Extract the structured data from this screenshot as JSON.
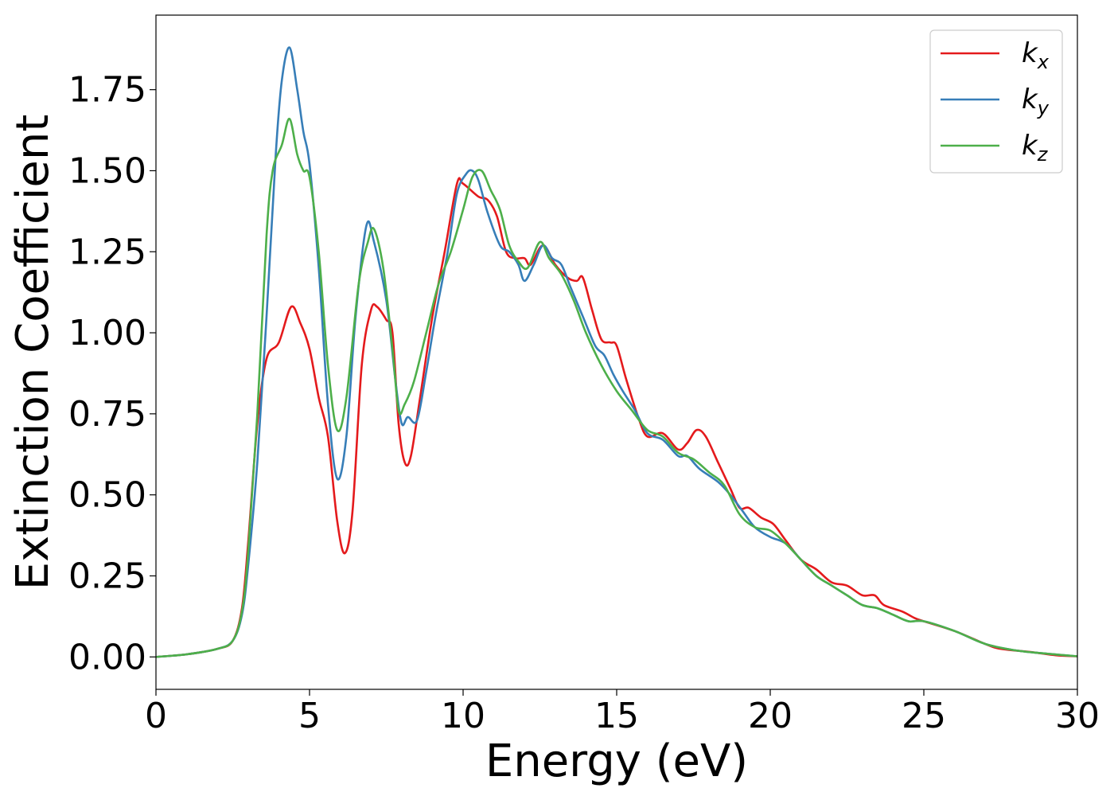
{
  "chart_data": {
    "type": "line",
    "title": "",
    "xlabel": "Energy (eV)",
    "ylabel": "Extinction Coefficient",
    "xlim": [
      0,
      30
    ],
    "ylim": [
      -0.1,
      1.98
    ],
    "xticks": [
      0,
      5,
      10,
      15,
      20,
      25,
      30
    ],
    "xtick_labels": [
      "0",
      "5",
      "10",
      "15",
      "20",
      "25",
      "30"
    ],
    "yticks": [
      0.0,
      0.25,
      0.5,
      0.75,
      1.0,
      1.25,
      1.5,
      1.75
    ],
    "ytick_labels": [
      "0.00",
      "0.25",
      "0.50",
      "0.75",
      "1.00",
      "1.25",
      "1.50",
      "1.75"
    ],
    "grid": false,
    "legend": "top-right",
    "series": [
      {
        "name": "k_x",
        "label_base": "k",
        "label_sub": "x",
        "color": "#e41a1c",
        "points": [
          [
            0,
            0
          ],
          [
            1,
            0.008
          ],
          [
            2,
            0.025
          ],
          [
            2.5,
            0.05
          ],
          [
            2.8,
            0.15
          ],
          [
            3.0,
            0.35
          ],
          [
            3.3,
            0.72
          ],
          [
            3.6,
            0.92
          ],
          [
            4.0,
            0.97
          ],
          [
            4.4,
            1.08
          ],
          [
            4.7,
            1.03
          ],
          [
            5.0,
            0.95
          ],
          [
            5.3,
            0.8
          ],
          [
            5.6,
            0.68
          ],
          [
            5.9,
            0.42
          ],
          [
            6.15,
            0.32
          ],
          [
            6.4,
            0.45
          ],
          [
            6.7,
            0.9
          ],
          [
            7.0,
            1.07
          ],
          [
            7.2,
            1.08
          ],
          [
            7.5,
            1.04
          ],
          [
            7.7,
            1.0
          ],
          [
            7.9,
            0.72
          ],
          [
            8.1,
            0.6
          ],
          [
            8.3,
            0.62
          ],
          [
            8.6,
            0.8
          ],
          [
            9.0,
            1.05
          ],
          [
            9.4,
            1.25
          ],
          [
            9.8,
            1.46
          ],
          [
            10.0,
            1.46
          ],
          [
            10.5,
            1.42
          ],
          [
            10.8,
            1.41
          ],
          [
            11.1,
            1.36
          ],
          [
            11.4,
            1.25
          ],
          [
            11.7,
            1.23
          ],
          [
            12.0,
            1.23
          ],
          [
            12.2,
            1.21
          ],
          [
            12.6,
            1.27
          ],
          [
            13.0,
            1.21
          ],
          [
            13.4,
            1.17
          ],
          [
            13.7,
            1.16
          ],
          [
            13.9,
            1.17
          ],
          [
            14.2,
            1.07
          ],
          [
            14.5,
            0.98
          ],
          [
            14.8,
            0.97
          ],
          [
            15.0,
            0.96
          ],
          [
            15.3,
            0.86
          ],
          [
            15.7,
            0.74
          ],
          [
            16.0,
            0.68
          ],
          [
            16.5,
            0.69
          ],
          [
            17.0,
            0.64
          ],
          [
            17.3,
            0.66
          ],
          [
            17.6,
            0.7
          ],
          [
            17.9,
            0.68
          ],
          [
            18.3,
            0.6
          ],
          [
            18.7,
            0.52
          ],
          [
            19.0,
            0.46
          ],
          [
            19.3,
            0.46
          ],
          [
            19.7,
            0.43
          ],
          [
            20.1,
            0.41
          ],
          [
            20.5,
            0.36
          ],
          [
            21.0,
            0.3
          ],
          [
            21.5,
            0.27
          ],
          [
            22.0,
            0.23
          ],
          [
            22.5,
            0.22
          ],
          [
            23.0,
            0.19
          ],
          [
            23.4,
            0.19
          ],
          [
            23.7,
            0.16
          ],
          [
            24.3,
            0.14
          ],
          [
            24.7,
            0.12
          ],
          [
            25.0,
            0.11
          ],
          [
            26.0,
            0.08
          ],
          [
            27.0,
            0.04
          ],
          [
            27.5,
            0.025
          ],
          [
            28.5,
            0.015
          ],
          [
            29.3,
            0.005
          ],
          [
            30,
            0.002
          ]
        ]
      },
      {
        "name": "k_y",
        "label_base": "k",
        "label_sub": "y",
        "color": "#377eb8",
        "points": [
          [
            0,
            0
          ],
          [
            1,
            0.008
          ],
          [
            2,
            0.025
          ],
          [
            2.5,
            0.05
          ],
          [
            2.8,
            0.13
          ],
          [
            3.0,
            0.28
          ],
          [
            3.3,
            0.6
          ],
          [
            3.6,
            1.05
          ],
          [
            3.9,
            1.55
          ],
          [
            4.1,
            1.78
          ],
          [
            4.35,
            1.88
          ],
          [
            4.6,
            1.75
          ],
          [
            4.8,
            1.62
          ],
          [
            5.0,
            1.52
          ],
          [
            5.3,
            1.2
          ],
          [
            5.6,
            0.78
          ],
          [
            5.9,
            0.55
          ],
          [
            6.2,
            0.68
          ],
          [
            6.5,
            1.05
          ],
          [
            6.85,
            1.33
          ],
          [
            7.1,
            1.28
          ],
          [
            7.5,
            1.1
          ],
          [
            7.8,
            0.85
          ],
          [
            8.0,
            0.72
          ],
          [
            8.2,
            0.74
          ],
          [
            8.5,
            0.73
          ],
          [
            8.8,
            0.88
          ],
          [
            9.1,
            1.05
          ],
          [
            9.5,
            1.25
          ],
          [
            9.8,
            1.43
          ],
          [
            10.1,
            1.49
          ],
          [
            10.3,
            1.5
          ],
          [
            10.5,
            1.47
          ],
          [
            10.8,
            1.37
          ],
          [
            11.2,
            1.27
          ],
          [
            11.5,
            1.25
          ],
          [
            11.8,
            1.21
          ],
          [
            12.0,
            1.16
          ],
          [
            12.3,
            1.21
          ],
          [
            12.6,
            1.27
          ],
          [
            12.9,
            1.23
          ],
          [
            13.2,
            1.21
          ],
          [
            13.5,
            1.14
          ],
          [
            13.9,
            1.05
          ],
          [
            14.3,
            0.96
          ],
          [
            14.6,
            0.93
          ],
          [
            14.9,
            0.87
          ],
          [
            15.2,
            0.82
          ],
          [
            15.6,
            0.76
          ],
          [
            16.0,
            0.69
          ],
          [
            16.5,
            0.67
          ],
          [
            17.0,
            0.62
          ],
          [
            17.3,
            0.62
          ],
          [
            17.7,
            0.58
          ],
          [
            18.3,
            0.54
          ],
          [
            18.7,
            0.5
          ],
          [
            19.1,
            0.45
          ],
          [
            19.5,
            0.4
          ],
          [
            20.0,
            0.37
          ],
          [
            20.5,
            0.35
          ],
          [
            21.0,
            0.3
          ],
          [
            21.5,
            0.25
          ],
          [
            22.0,
            0.22
          ],
          [
            22.5,
            0.19
          ],
          [
            23.0,
            0.16
          ],
          [
            23.5,
            0.15
          ],
          [
            24.0,
            0.13
          ],
          [
            24.5,
            0.11
          ],
          [
            25.0,
            0.11
          ],
          [
            26.0,
            0.08
          ],
          [
            27.0,
            0.04
          ],
          [
            28.0,
            0.02
          ],
          [
            29.0,
            0.01
          ],
          [
            30,
            0.002
          ]
        ]
      },
      {
        "name": "k_z",
        "label_base": "k",
        "label_sub": "z",
        "color": "#4daf4a",
        "points": [
          [
            0,
            0
          ],
          [
            1,
            0.008
          ],
          [
            2,
            0.025
          ],
          [
            2.5,
            0.05
          ],
          [
            2.8,
            0.14
          ],
          [
            3.0,
            0.32
          ],
          [
            3.3,
            0.75
          ],
          [
            3.6,
            1.3
          ],
          [
            3.8,
            1.5
          ],
          [
            4.1,
            1.58
          ],
          [
            4.35,
            1.66
          ],
          [
            4.6,
            1.55
          ],
          [
            4.8,
            1.5
          ],
          [
            5.0,
            1.48
          ],
          [
            5.3,
            1.25
          ],
          [
            5.6,
            0.9
          ],
          [
            5.9,
            0.7
          ],
          [
            6.2,
            0.8
          ],
          [
            6.6,
            1.15
          ],
          [
            6.9,
            1.28
          ],
          [
            7.1,
            1.32
          ],
          [
            7.4,
            1.2
          ],
          [
            7.7,
            0.95
          ],
          [
            7.9,
            0.76
          ],
          [
            8.1,
            0.78
          ],
          [
            8.4,
            0.85
          ],
          [
            8.8,
            1.0
          ],
          [
            9.2,
            1.15
          ],
          [
            9.6,
            1.25
          ],
          [
            10.0,
            1.38
          ],
          [
            10.3,
            1.48
          ],
          [
            10.6,
            1.5
          ],
          [
            10.9,
            1.44
          ],
          [
            11.2,
            1.38
          ],
          [
            11.5,
            1.27
          ],
          [
            11.8,
            1.22
          ],
          [
            12.1,
            1.2
          ],
          [
            12.5,
            1.28
          ],
          [
            12.8,
            1.23
          ],
          [
            13.2,
            1.18
          ],
          [
            13.6,
            1.1
          ],
          [
            14.0,
            1.0
          ],
          [
            14.5,
            0.9
          ],
          [
            15.0,
            0.82
          ],
          [
            15.5,
            0.76
          ],
          [
            16.0,
            0.7
          ],
          [
            16.5,
            0.68
          ],
          [
            17.0,
            0.63
          ],
          [
            17.5,
            0.61
          ],
          [
            18.0,
            0.57
          ],
          [
            18.5,
            0.53
          ],
          [
            19.0,
            0.44
          ],
          [
            19.5,
            0.4
          ],
          [
            20.0,
            0.39
          ],
          [
            20.5,
            0.35
          ],
          [
            21.0,
            0.3
          ],
          [
            21.5,
            0.25
          ],
          [
            22.0,
            0.22
          ],
          [
            22.5,
            0.19
          ],
          [
            23.0,
            0.16
          ],
          [
            23.5,
            0.15
          ],
          [
            24.0,
            0.13
          ],
          [
            24.5,
            0.11
          ],
          [
            25.0,
            0.11
          ],
          [
            26.0,
            0.08
          ],
          [
            27.0,
            0.04
          ],
          [
            28.0,
            0.02
          ],
          [
            29.0,
            0.01
          ],
          [
            30,
            0.002
          ]
        ]
      }
    ]
  }
}
